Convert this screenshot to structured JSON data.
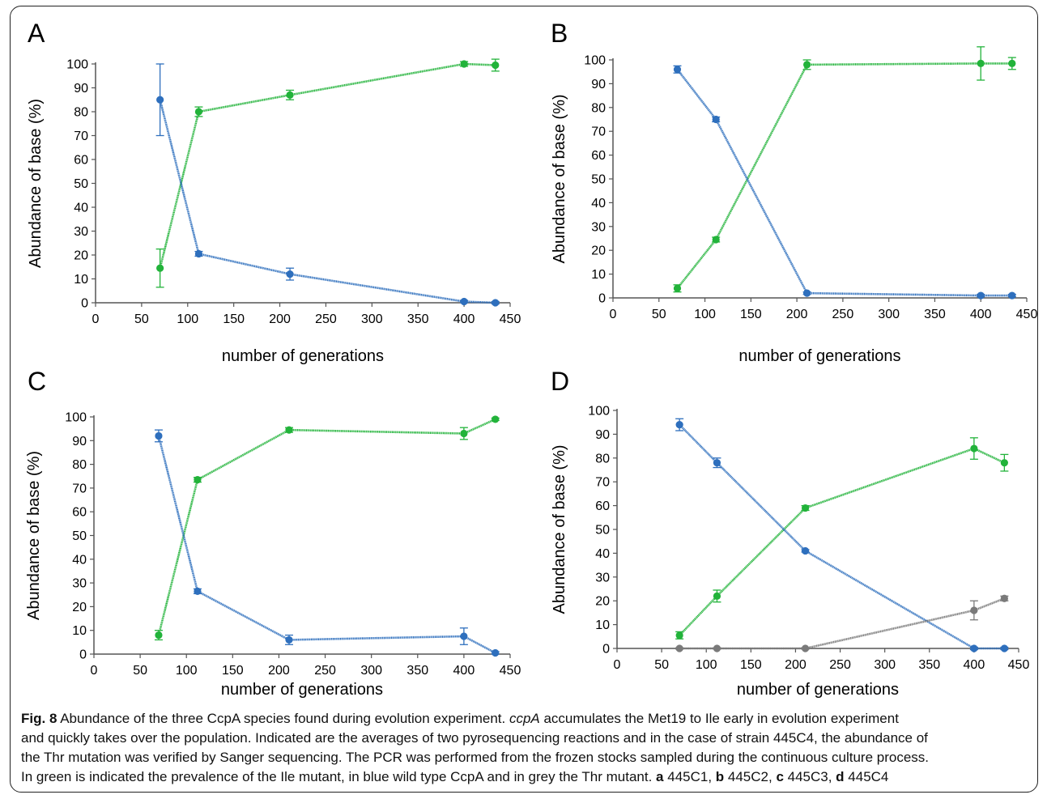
{
  "colors": {
    "ile": "#22b33a",
    "wild": "#2e6fbd",
    "thr": "#7a7a7a",
    "axis": "#555555"
  },
  "caption": {
    "fig_label": "Fig. 8",
    "line1_a": " Abundance of the three CcpA species found during evolution experiment. ",
    "line1_gene": "ccpA",
    "line1_b": " accumulates the Met19 to Ile early in evolution experiment",
    "line2": "and quickly takes over the population. Indicated are the averages of two pyrosequencing reactions and in the case of strain 445C4, the abundance of",
    "line3": "the Thr mutation was verified by Sanger sequencing. The PCR was performed from the frozen stocks sampled during the continuous culture process.",
    "line4": "In green is indicated the prevalence of the Ile mutant, in blue wild type CcpA and in grey the Thr mutant. ",
    "sub_a": "a",
    "sub_a_text": " 445C1, ",
    "sub_b": "b",
    "sub_b_text": " 445C2, ",
    "sub_c": "c",
    "sub_c_text": " 445C3, ",
    "sub_d": "d",
    "sub_d_text": " 445C4"
  },
  "chart_data": [
    {
      "panel": "A",
      "type": "line",
      "xlabel": "number of generations",
      "ylabel": "Abundance of base (%)",
      "xlim": [
        0,
        450
      ],
      "ylim": [
        0,
        100
      ],
      "xticks": [
        0,
        50,
        100,
        150,
        200,
        250,
        300,
        350,
        400,
        450
      ],
      "yticks": [
        0,
        10,
        20,
        30,
        40,
        50,
        60,
        70,
        80,
        90,
        100
      ],
      "series": [
        {
          "color_key": "ile",
          "x": [
            70,
            112,
            211,
            400,
            434
          ],
          "values": [
            14.5,
            80,
            87,
            100,
            99.5
          ],
          "err": [
            8,
            2,
            2,
            1,
            2.5
          ]
        },
        {
          "color_key": "wild",
          "x": [
            70,
            112,
            211,
            400,
            434
          ],
          "values": [
            85,
            20.5,
            12,
            0.5,
            0
          ],
          "err": [
            15,
            1,
            2.5,
            0.5,
            0.5
          ]
        }
      ]
    },
    {
      "panel": "B",
      "type": "line",
      "xlabel": "number of generations",
      "ylabel": "Abundance of base (%)",
      "xlim": [
        0,
        450
      ],
      "ylim": [
        0,
        100
      ],
      "xticks": [
        0,
        50,
        100,
        150,
        200,
        250,
        300,
        350,
        400,
        450
      ],
      "yticks": [
        0,
        10,
        20,
        30,
        40,
        50,
        60,
        70,
        80,
        90,
        100
      ],
      "series": [
        {
          "color_key": "ile",
          "x": [
            70,
            112,
            211,
            400,
            434
          ],
          "values": [
            4,
            24.5,
            98,
            98.5,
            98.5
          ],
          "err": [
            1.5,
            1,
            2,
            7,
            2.5
          ]
        },
        {
          "color_key": "wild",
          "x": [
            70,
            112,
            211,
            400,
            434
          ],
          "values": [
            96,
            75,
            2,
            1,
            1
          ],
          "err": [
            1.5,
            1,
            0.5,
            0.5,
            0.5
          ]
        }
      ]
    },
    {
      "panel": "C",
      "type": "line",
      "xlabel": "number of generations",
      "ylabel": "Abundance of base (%)",
      "xlim": [
        0,
        450
      ],
      "ylim": [
        0,
        100
      ],
      "xticks": [
        0,
        50,
        100,
        150,
        200,
        250,
        300,
        350,
        400,
        450
      ],
      "yticks": [
        0,
        10,
        20,
        30,
        40,
        50,
        60,
        70,
        80,
        90,
        100
      ],
      "series": [
        {
          "color_key": "ile",
          "x": [
            70,
            112,
            211,
            400,
            434
          ],
          "values": [
            8,
            73.5,
            94.5,
            93,
            99
          ],
          "err": [
            2,
            1,
            1,
            2.5,
            0.5
          ]
        },
        {
          "color_key": "wild",
          "x": [
            70,
            112,
            211,
            400,
            434
          ],
          "values": [
            92,
            26.5,
            6,
            7.5,
            0.5
          ],
          "err": [
            2.5,
            1,
            2,
            3.5,
            0.5
          ]
        }
      ]
    },
    {
      "panel": "D",
      "type": "line",
      "xlabel": "number of generations",
      "ylabel": "Abundance of base (%)",
      "xlim": [
        0,
        450
      ],
      "ylim": [
        0,
        100
      ],
      "xticks": [
        0,
        50,
        100,
        150,
        200,
        250,
        300,
        350,
        400,
        450
      ],
      "yticks": [
        0,
        10,
        20,
        30,
        40,
        50,
        60,
        70,
        80,
        90,
        100
      ],
      "series": [
        {
          "color_key": "ile",
          "x": [
            70,
            112,
            211,
            400,
            434
          ],
          "values": [
            5.5,
            22,
            59,
            84,
            78
          ],
          "err": [
            1.5,
            2.5,
            1,
            4.5,
            3.5
          ]
        },
        {
          "color_key": "wild",
          "x": [
            70,
            112,
            211,
            400,
            434
          ],
          "values": [
            94,
            78,
            41,
            0,
            0
          ],
          "err": [
            2.5,
            2,
            0.5,
            0.5,
            0.5
          ]
        },
        {
          "color_key": "thr",
          "x": [
            70,
            112,
            211,
            400,
            434
          ],
          "values": [
            0,
            0,
            0,
            16,
            21
          ],
          "err": [
            0.3,
            0.3,
            0.3,
            4,
            1
          ]
        }
      ]
    }
  ]
}
